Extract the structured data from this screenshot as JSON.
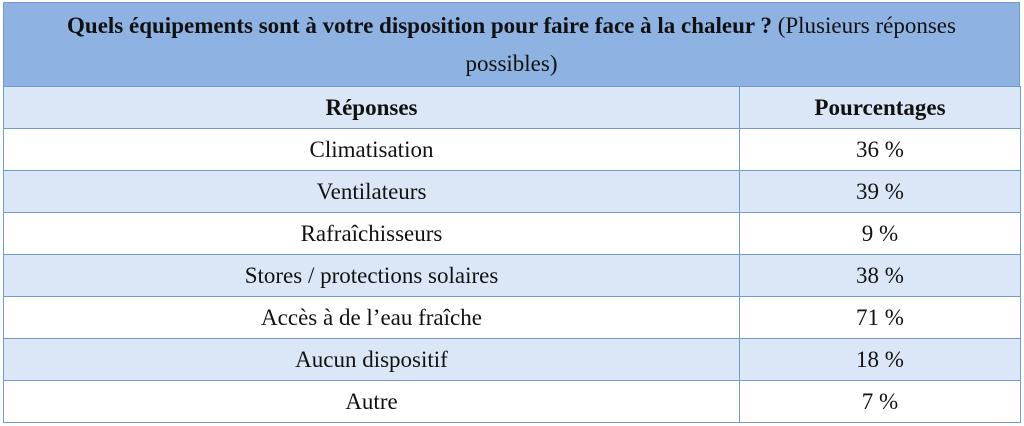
{
  "caption": {
    "question": "Quels équipements sont à votre disposition pour faire face à la chaleur ?",
    "note": "(Plusieurs réponses possibles)"
  },
  "headers": {
    "col1": "Réponses",
    "col2": "Pourcentages"
  },
  "rows": [
    {
      "response": "Climatisation",
      "percent": "36 %"
    },
    {
      "response": "Ventilateurs",
      "percent": "39 %"
    },
    {
      "response": "Rafraîchisseurs",
      "percent": "9 %"
    },
    {
      "response": "Stores / protections solaires",
      "percent": "38 %"
    },
    {
      "response": "Accès à de l’eau fraîche",
      "percent": "71 %"
    },
    {
      "response": "Aucun dispositif",
      "percent": "18 %"
    },
    {
      "response": "Autre",
      "percent": "7 %"
    }
  ],
  "colors": {
    "caption_bg": "#8eb3e3",
    "band_bg": "#dbe7f6",
    "border": "#6f9bd1"
  }
}
